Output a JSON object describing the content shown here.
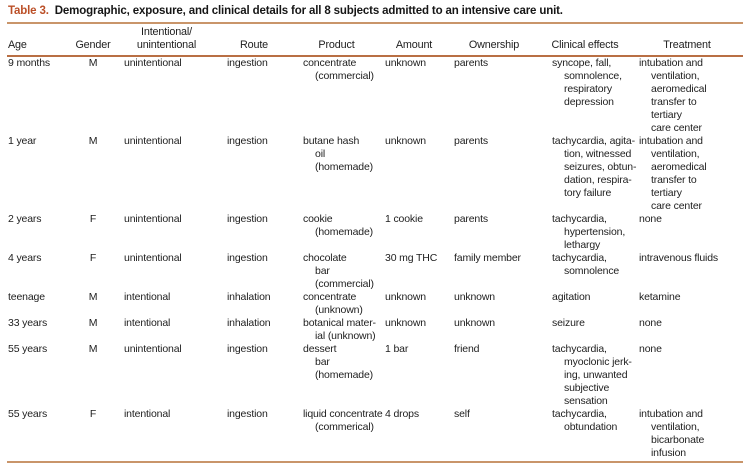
{
  "title": {
    "label": "Table 3.",
    "text": "Demographic, exposure, and clinical details for all 8 subjects admitted to an intensive care unit."
  },
  "colors": {
    "accent": "#bb4f27",
    "rule_title": "#c9956a",
    "rule_header": "#b96f44",
    "text": "#1e1e1e"
  },
  "table": {
    "columns": [
      "Age",
      "Gender",
      "Intentional/\nunintentional",
      "Route",
      "Product",
      "Amount",
      "Ownership",
      "Clinical effects",
      "Treatment"
    ],
    "rows": [
      [
        "9 months",
        "M",
        "unintentional",
        "ingestion",
        "concentrate\n(commercial)",
        "unknown",
        "parents",
        "syncope, fall,\nsomnolence,\nrespiratory\ndepression",
        "intubation and\nventilation,\naeromedical\ntransfer to\ntertiary\ncare center"
      ],
      [
        "1 year",
        "M",
        "unintentional",
        "ingestion",
        "butane hash\noil\n(homemade)",
        "unknown",
        "parents",
        "tachycardia, agita-\ntion, witnessed\nseizures, obtun-\ndation, respira-\ntory failure",
        "intubation and\nventilation,\naeromedical\ntransfer to\ntertiary\ncare center"
      ],
      [
        "2 years",
        "F",
        "unintentional",
        "ingestion",
        "cookie\n(homemade)",
        "1 cookie",
        "parents",
        "tachycardia,\nhypertension,\nlethargy",
        "none"
      ],
      [
        "4 years",
        "F",
        "unintentional",
        "ingestion",
        "chocolate\nbar\n(commercial)",
        "30 mg THC",
        "family member",
        "tachycardia,\nsomnolence",
        "intravenous fluids"
      ],
      [
        "teenage",
        "M",
        "intentional",
        "inhalation",
        "concentrate\n(unknown)",
        "unknown",
        "unknown",
        "agitation",
        "ketamine"
      ],
      [
        "33 years",
        "M",
        "intentional",
        "inhalation",
        "botanical mater-\nial (unknown)",
        "unknown",
        "unknown",
        "seizure",
        "none"
      ],
      [
        "55 years",
        "M",
        "unintentional",
        "ingestion",
        "dessert\nbar\n(homemade)",
        "1 bar",
        "friend",
        "tachycardia,\nmyoclonic jerk-\ning, unwanted\nsubjective\nsensation",
        "none"
      ],
      [
        "55 years",
        "F",
        "intentional",
        "ingestion",
        "liquid concentrate\n(commerical)",
        "4 drops",
        "self",
        "tachycardia,\nobtundation",
        "intubation and\nventilation,\nbicarbonate\ninfusion"
      ]
    ]
  }
}
